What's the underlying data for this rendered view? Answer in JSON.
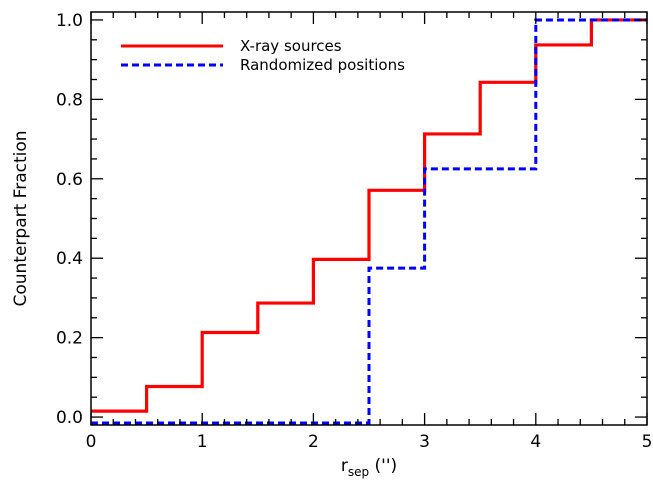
{
  "chart_data": {
    "type": "line",
    "step": true,
    "xlabel": {
      "main": "r",
      "sub": "sep",
      "suffix": " ('')"
    },
    "ylabel": "Counterpart Fraction",
    "xlim": [
      0,
      5
    ],
    "ylim": [
      -0.02,
      1.02
    ],
    "xticks": [
      0,
      1,
      2,
      3,
      4,
      5
    ],
    "yticks": [
      0.0,
      0.2,
      0.4,
      0.6,
      0.8,
      1.0
    ],
    "ytick_labels": [
      "0.0",
      "0.2",
      "0.4",
      "0.6",
      "0.8",
      "1.0"
    ],
    "grid": false,
    "legend_position": "top-left",
    "series": [
      {
        "name": "X-ray sources",
        "color": "#ff0000",
        "dash": "solid",
        "x": [
          0,
          0.5,
          1.0,
          1.5,
          2.0,
          2.5,
          3.0,
          3.5,
          4.0,
          4.5,
          5.0
        ],
        "y": [
          0.015,
          0.077,
          0.213,
          0.287,
          0.397,
          0.571,
          0.713,
          0.843,
          0.937,
          1.0,
          1.0
        ]
      },
      {
        "name": "Randomized positions",
        "color": "#0000ff",
        "dash": "dashed",
        "x": [
          0,
          0.5,
          1.0,
          1.5,
          2.0,
          2.5,
          3.0,
          3.5,
          4.0,
          4.5,
          5.0
        ],
        "y": [
          -0.015,
          -0.015,
          -0.015,
          -0.015,
          -0.015,
          0.375,
          0.625,
          0.625,
          1.0,
          1.0,
          1.0
        ]
      }
    ]
  }
}
